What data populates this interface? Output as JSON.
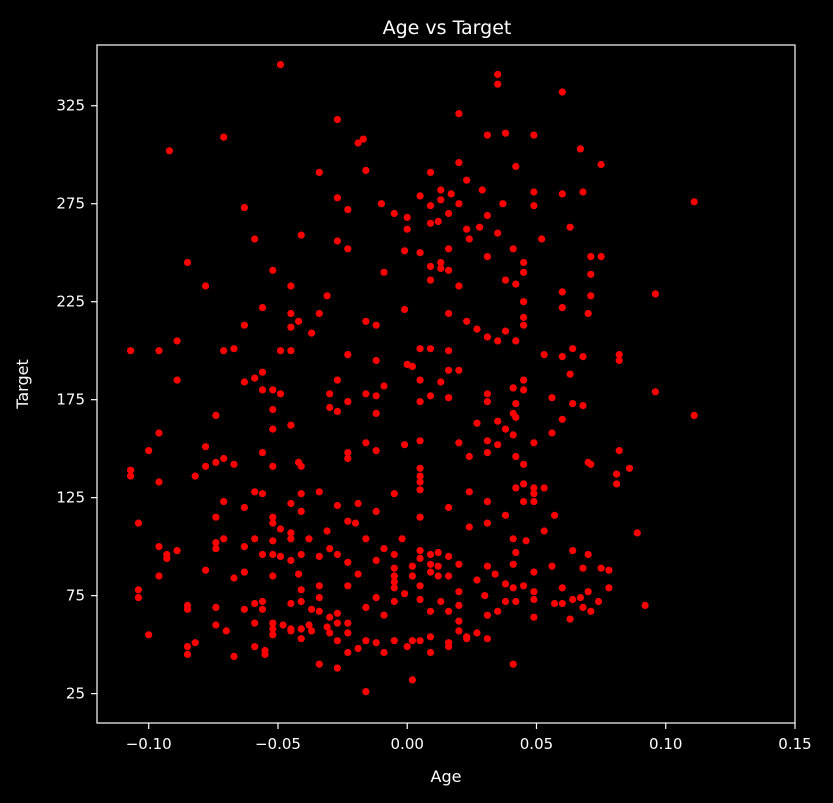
{
  "chart_data": {
    "type": "scatter",
    "title": "Age vs Target",
    "xlabel": "Age",
    "ylabel": "Target",
    "xlim": [
      -0.12,
      0.15
    ],
    "ylim": [
      10,
      356
    ],
    "xticks": [
      -0.1,
      -0.05,
      0.0,
      0.05,
      0.1,
      0.15
    ],
    "xtick_labels": [
      "−0.10",
      "−0.05",
      "0.00",
      "0.05",
      "0.10",
      "0.15"
    ],
    "yticks": [
      25,
      75,
      125,
      175,
      225,
      275,
      325
    ],
    "ytick_labels": [
      "25",
      "75",
      "125",
      "175",
      "225",
      "275",
      "325"
    ],
    "grid": false,
    "background_color": "#000000",
    "axes_color": "#ffffff",
    "marker_color": "#ff0000",
    "points": [
      [
        -0.049,
        346
      ],
      [
        0.035,
        341
      ],
      [
        0.035,
        336
      ],
      [
        0.06,
        332
      ],
      [
        0.02,
        321
      ],
      [
        -0.027,
        318
      ],
      [
        0.038,
        311
      ],
      [
        0.031,
        310
      ],
      [
        0.049,
        310
      ],
      [
        -0.071,
        309
      ],
      [
        -0.017,
        308
      ],
      [
        -0.019,
        306
      ],
      [
        -0.092,
        302
      ],
      [
        0.067,
        303
      ],
      [
        0.02,
        296
      ],
      [
        0.075,
        295
      ],
      [
        -0.034,
        291
      ],
      [
        -0.016,
        292
      ],
      [
        0.009,
        291
      ],
      [
        0.042,
        294
      ],
      [
        0.023,
        287
      ],
      [
        0.029,
        282
      ],
      [
        0.013,
        282
      ],
      [
        0.017,
        280
      ],
      [
        0.005,
        279
      ],
      [
        -0.027,
        278
      ],
      [
        0.013,
        277
      ],
      [
        0.068,
        281
      ],
      [
        0.06,
        280
      ],
      [
        0.049,
        281
      ],
      [
        0.037,
        275
      ],
      [
        0.111,
        276
      ],
      [
        0.009,
        274
      ],
      [
        0.02,
        275
      ],
      [
        -0.063,
        273
      ],
      [
        -0.023,
        272
      ],
      [
        -0.005,
        270
      ],
      [
        -0.01,
        275
      ],
      [
        0.049,
        274
      ],
      [
        0.016,
        270
      ],
      [
        0.031,
        269
      ],
      [
        0.0,
        268
      ],
      [
        0.012,
        266
      ],
      [
        0.009,
        265
      ],
      [
        0.028,
        263
      ],
      [
        0.023,
        262
      ],
      [
        0.035,
        260
      ],
      [
        0.063,
        263
      ],
      [
        -0.041,
        259
      ],
      [
        -0.059,
        257
      ],
      [
        -0.027,
        256
      ],
      [
        0.052,
        257
      ],
      [
        0.0,
        262
      ],
      [
        0.024,
        257
      ],
      [
        0.016,
        252
      ],
      [
        -0.023,
        252
      ],
      [
        -0.001,
        251
      ],
      [
        0.041,
        252
      ],
      [
        0.005,
        250
      ],
      [
        0.031,
        248
      ],
      [
        0.071,
        248
      ],
      [
        0.075,
        248
      ],
      [
        0.045,
        245
      ],
      [
        0.013,
        245
      ],
      [
        -0.085,
        245
      ],
      [
        0.013,
        242
      ],
      [
        -0.052,
        241
      ],
      [
        -0.009,
        240
      ],
      [
        0.009,
        243
      ],
      [
        0.045,
        240
      ],
      [
        0.071,
        239
      ],
      [
        0.016,
        241
      ],
      [
        0.038,
        236
      ],
      [
        -0.078,
        233
      ],
      [
        -0.045,
        233
      ],
      [
        0.02,
        233
      ],
      [
        0.009,
        236
      ],
      [
        0.042,
        234
      ],
      [
        0.06,
        230
      ],
      [
        0.096,
        229
      ],
      [
        0.071,
        228
      ],
      [
        -0.031,
        228
      ],
      [
        0.045,
        225
      ],
      [
        -0.056,
        222
      ],
      [
        -0.034,
        219
      ],
      [
        -0.045,
        219
      ],
      [
        -0.001,
        221
      ],
      [
        0.016,
        219
      ],
      [
        0.023,
        215
      ],
      [
        0.045,
        217
      ],
      [
        0.045,
        213
      ],
      [
        0.06,
        222
      ],
      [
        0.07,
        219
      ],
      [
        -0.063,
        213
      ],
      [
        -0.042,
        215
      ],
      [
        -0.045,
        212
      ],
      [
        -0.016,
        215
      ],
      [
        -0.012,
        213
      ],
      [
        0.038,
        210
      ],
      [
        0.027,
        211
      ],
      [
        -0.037,
        209
      ],
      [
        0.031,
        207
      ],
      [
        0.035,
        205
      ],
      [
        0.042,
        205
      ],
      [
        -0.089,
        205
      ],
      [
        -0.107,
        200
      ],
      [
        -0.096,
        200
      ],
      [
        -0.071,
        200
      ],
      [
        -0.067,
        201
      ],
      [
        -0.049,
        200
      ],
      [
        -0.045,
        200
      ],
      [
        -0.023,
        198
      ],
      [
        0.005,
        201
      ],
      [
        0.009,
        201
      ],
      [
        0.016,
        200
      ],
      [
        0.053,
        198
      ],
      [
        0.06,
        197
      ],
      [
        0.064,
        201
      ],
      [
        0.068,
        197
      ],
      [
        0.082,
        198
      ],
      [
        0.082,
        195
      ],
      [
        -0.012,
        195
      ],
      [
        0.0,
        193
      ],
      [
        0.002,
        192
      ],
      [
        0.016,
        190
      ],
      [
        0.02,
        190
      ],
      [
        0.063,
        188
      ],
      [
        -0.056,
        189
      ],
      [
        -0.059,
        186
      ],
      [
        -0.063,
        184
      ],
      [
        -0.089,
        185
      ],
      [
        -0.027,
        185
      ],
      [
        0.005,
        185
      ],
      [
        0.013,
        184
      ],
      [
        0.045,
        185
      ],
      [
        -0.009,
        182
      ],
      [
        -0.056,
        180
      ],
      [
        -0.052,
        180
      ],
      [
        -0.03,
        178
      ],
      [
        -0.049,
        178
      ],
      [
        0.041,
        181
      ],
      [
        0.045,
        180
      ],
      [
        0.096,
        179
      ],
      [
        0.009,
        177
      ],
      [
        0.016,
        176
      ],
      [
        0.031,
        178
      ],
      [
        -0.012,
        177
      ],
      [
        -0.016,
        178
      ],
      [
        0.056,
        176
      ],
      [
        0.064,
        173
      ],
      [
        0.068,
        172
      ],
      [
        -0.023,
        174
      ],
      [
        -0.03,
        171
      ],
      [
        0.042,
        173
      ],
      [
        0.005,
        174
      ],
      [
        0.031,
        174
      ],
      [
        -0.052,
        170
      ],
      [
        -0.027,
        169
      ],
      [
        0.041,
        168
      ],
      [
        -0.074,
        167
      ],
      [
        0.111,
        167
      ],
      [
        -0.012,
        168
      ],
      [
        0.042,
        166
      ],
      [
        0.035,
        164
      ],
      [
        0.06,
        165
      ],
      [
        0.027,
        163
      ],
      [
        -0.045,
        162
      ],
      [
        0.038,
        160
      ],
      [
        -0.096,
        158
      ],
      [
        -0.052,
        160
      ],
      [
        0.041,
        157
      ],
      [
        0.056,
        158
      ],
      [
        0.031,
        154
      ],
      [
        0.035,
        152
      ],
      [
        -0.016,
        153
      ],
      [
        -0.001,
        152
      ],
      [
        0.005,
        154
      ],
      [
        0.02,
        153
      ],
      [
        0.049,
        153
      ],
      [
        -0.078,
        151
      ],
      [
        -0.1,
        149
      ],
      [
        -0.023,
        148
      ],
      [
        -0.023,
        145
      ],
      [
        -0.056,
        148
      ],
      [
        0.082,
        149
      ],
      [
        -0.012,
        149
      ],
      [
        0.031,
        148
      ],
      [
        0.042,
        146
      ],
      [
        0.024,
        146
      ],
      [
        0.045,
        142
      ],
      [
        -0.071,
        145
      ],
      [
        -0.074,
        143
      ],
      [
        -0.078,
        141
      ],
      [
        -0.067,
        142
      ],
      [
        -0.052,
        141
      ],
      [
        -0.042,
        143
      ],
      [
        -0.041,
        141
      ],
      [
        0.005,
        140
      ],
      [
        0.07,
        143
      ],
      [
        0.071,
        142
      ],
      [
        0.086,
        140
      ],
      [
        0.081,
        137
      ],
      [
        -0.107,
        139
      ],
      [
        -0.107,
        136
      ],
      [
        -0.082,
        136
      ],
      [
        -0.096,
        133
      ],
      [
        0.005,
        136
      ],
      [
        0.005,
        133
      ],
      [
        0.045,
        132
      ],
      [
        0.049,
        130
      ],
      [
        0.053,
        130
      ],
      [
        0.042,
        130
      ],
      [
        0.081,
        132
      ],
      [
        0.005,
        129
      ],
      [
        -0.059,
        128
      ],
      [
        -0.056,
        127
      ],
      [
        -0.034,
        128
      ],
      [
        -0.041,
        127
      ],
      [
        -0.005,
        127
      ],
      [
        0.024,
        128
      ],
      [
        0.049,
        127
      ],
      [
        -0.071,
        123
      ],
      [
        -0.045,
        122
      ],
      [
        -0.027,
        121
      ],
      [
        -0.019,
        122
      ],
      [
        0.031,
        123
      ],
      [
        0.045,
        123
      ],
      [
        0.049,
        123
      ],
      [
        -0.063,
        120
      ],
      [
        -0.041,
        118
      ],
      [
        0.016,
        120
      ],
      [
        -0.012,
        118
      ],
      [
        0.005,
        115
      ],
      [
        0.057,
        116
      ],
      [
        -0.074,
        115
      ],
      [
        -0.052,
        115
      ],
      [
        -0.052,
        112
      ],
      [
        -0.023,
        113
      ],
      [
        0.038,
        116
      ],
      [
        -0.104,
        112
      ],
      [
        -0.02,
        112
      ],
      [
        0.024,
        110
      ],
      [
        0.031,
        112
      ],
      [
        0.053,
        108
      ],
      [
        0.089,
        107
      ],
      [
        -0.049,
        109
      ],
      [
        -0.045,
        107
      ],
      [
        -0.031,
        108
      ],
      [
        -0.038,
        104
      ],
      [
        -0.071,
        104
      ],
      [
        0.041,
        104
      ],
      [
        -0.059,
        104
      ],
      [
        -0.063,
        100
      ],
      [
        -0.074,
        102
      ],
      [
        -0.074,
        99
      ],
      [
        -0.052,
        103
      ],
      [
        -0.045,
        104
      ],
      [
        -0.016,
        104
      ],
      [
        0.046,
        103
      ],
      [
        -0.002,
        104
      ],
      [
        -0.096,
        100
      ],
      [
        -0.093,
        96
      ],
      [
        -0.093,
        94
      ],
      [
        -0.089,
        98
      ],
      [
        -0.056,
        96
      ],
      [
        -0.052,
        96
      ],
      [
        -0.041,
        96
      ],
      [
        -0.049,
        95
      ],
      [
        -0.034,
        95
      ],
      [
        -0.027,
        96
      ],
      [
        -0.03,
        99
      ],
      [
        -0.009,
        99
      ],
      [
        -0.005,
        96
      ],
      [
        0.005,
        98
      ],
      [
        0.005,
        94
      ],
      [
        0.009,
        96
      ],
      [
        0.012,
        97
      ],
      [
        0.016,
        95
      ],
      [
        0.042,
        97
      ],
      [
        0.064,
        98
      ],
      [
        0.07,
        96
      ],
      [
        -0.012,
        93
      ],
      [
        -0.023,
        92
      ],
      [
        -0.045,
        93
      ],
      [
        0.02,
        91
      ],
      [
        0.009,
        91
      ],
      [
        0.012,
        90
      ],
      [
        0.002,
        90
      ],
      [
        -0.005,
        89
      ],
      [
        0.031,
        90
      ],
      [
        0.041,
        91
      ],
      [
        0.056,
        90
      ],
      [
        0.078,
        88
      ],
      [
        0.068,
        89
      ],
      [
        0.075,
        89
      ],
      [
        -0.078,
        88
      ],
      [
        -0.063,
        87
      ],
      [
        -0.052,
        85
      ],
      [
        -0.042,
        86
      ],
      [
        -0.019,
        86
      ],
      [
        -0.005,
        85
      ],
      [
        0.002,
        85
      ],
      [
        0.009,
        87
      ],
      [
        0.012,
        85
      ],
      [
        0.016,
        85
      ],
      [
        0.034,
        86
      ],
      [
        0.049,
        87
      ],
      [
        -0.005,
        82
      ],
      [
        0.027,
        83
      ],
      [
        -0.005,
        79
      ],
      [
        0.005,
        80
      ],
      [
        0.038,
        81
      ],
      [
        0.045,
        80
      ],
      [
        0.049,
        77
      ],
      [
        -0.034,
        80
      ],
      [
        -0.041,
        78
      ],
      [
        -0.023,
        80
      ],
      [
        0.041,
        79
      ],
      [
        0.06,
        79
      ],
      [
        0.078,
        79
      ],
      [
        -0.096,
        85
      ],
      [
        -0.067,
        84
      ],
      [
        -0.104,
        78
      ],
      [
        -0.104,
        74
      ],
      [
        -0.001,
        76
      ],
      [
        0.02,
        77
      ],
      [
        0.03,
        75
      ],
      [
        0.07,
        77
      ],
      [
        0.067,
        74
      ],
      [
        -0.034,
        74
      ],
      [
        -0.012,
        74
      ],
      [
        0.005,
        73
      ],
      [
        0.013,
        72
      ],
      [
        -0.056,
        72
      ],
      [
        -0.059,
        71
      ],
      [
        -0.045,
        71
      ],
      [
        -0.041,
        72
      ],
      [
        0.038,
        72
      ],
      [
        0.042,
        72
      ],
      [
        0.049,
        73
      ],
      [
        0.074,
        72
      ],
      [
        0.06,
        71
      ],
      [
        0.064,
        73
      ],
      [
        -0.085,
        70
      ],
      [
        -0.085,
        68
      ],
      [
        -0.074,
        69
      ],
      [
        -0.063,
        68
      ],
      [
        -0.056,
        68
      ],
      [
        -0.037,
        68
      ],
      [
        -0.034,
        67
      ],
      [
        -0.016,
        69
      ],
      [
        -0.005,
        72
      ],
      [
        0.02,
        70
      ],
      [
        0.092,
        70
      ],
      [
        0.068,
        69
      ],
      [
        0.057,
        71
      ],
      [
        0.071,
        67
      ],
      [
        0.035,
        67
      ],
      [
        -0.027,
        66
      ],
      [
        -0.009,
        65
      ],
      [
        0.009,
        67
      ],
      [
        0.016,
        67
      ],
      [
        0.049,
        64
      ],
      [
        -0.03,
        64
      ],
      [
        -0.023,
        61
      ],
      [
        0.031,
        65
      ],
      [
        0.063,
        63
      ],
      [
        -0.052,
        61
      ],
      [
        -0.048,
        60
      ],
      [
        -0.045,
        58
      ],
      [
        -0.041,
        58
      ],
      [
        -0.038,
        60
      ],
      [
        -0.031,
        59
      ],
      [
        -0.027,
        61
      ],
      [
        0.02,
        62
      ],
      [
        -0.059,
        61
      ],
      [
        -0.074,
        60
      ],
      [
        -0.07,
        57
      ],
      [
        -0.052,
        58
      ],
      [
        -0.045,
        57
      ],
      [
        -0.037,
        57
      ],
      [
        -0.023,
        56
      ],
      [
        -0.03,
        56
      ],
      [
        0.027,
        56
      ],
      [
        -0.1,
        55
      ],
      [
        -0.052,
        55
      ],
      [
        -0.041,
        53
      ],
      [
        0.023,
        54
      ],
      [
        0.02,
        57
      ],
      [
        0.023,
        53
      ],
      [
        -0.027,
        52
      ],
      [
        -0.016,
        52
      ],
      [
        -0.005,
        52
      ],
      [
        0.002,
        52
      ],
      [
        0.005,
        52
      ],
      [
        0.009,
        54
      ],
      [
        0.031,
        53
      ],
      [
        -0.082,
        51
      ],
      [
        -0.085,
        49
      ],
      [
        -0.059,
        49
      ],
      [
        -0.012,
        51
      ],
      [
        0.016,
        51
      ],
      [
        0.016,
        49
      ],
      [
        -0.055,
        47
      ],
      [
        -0.019,
        48
      ],
      [
        0.0,
        49
      ],
      [
        -0.085,
        45
      ],
      [
        -0.067,
        44
      ],
      [
        -0.055,
        45
      ],
      [
        -0.023,
        46
      ],
      [
        -0.009,
        46
      ],
      [
        0.009,
        46
      ],
      [
        -0.034,
        40
      ],
      [
        -0.027,
        38
      ],
      [
        0.041,
        40
      ],
      [
        -0.016,
        26
      ],
      [
        0.002,
        32
      ]
    ]
  }
}
